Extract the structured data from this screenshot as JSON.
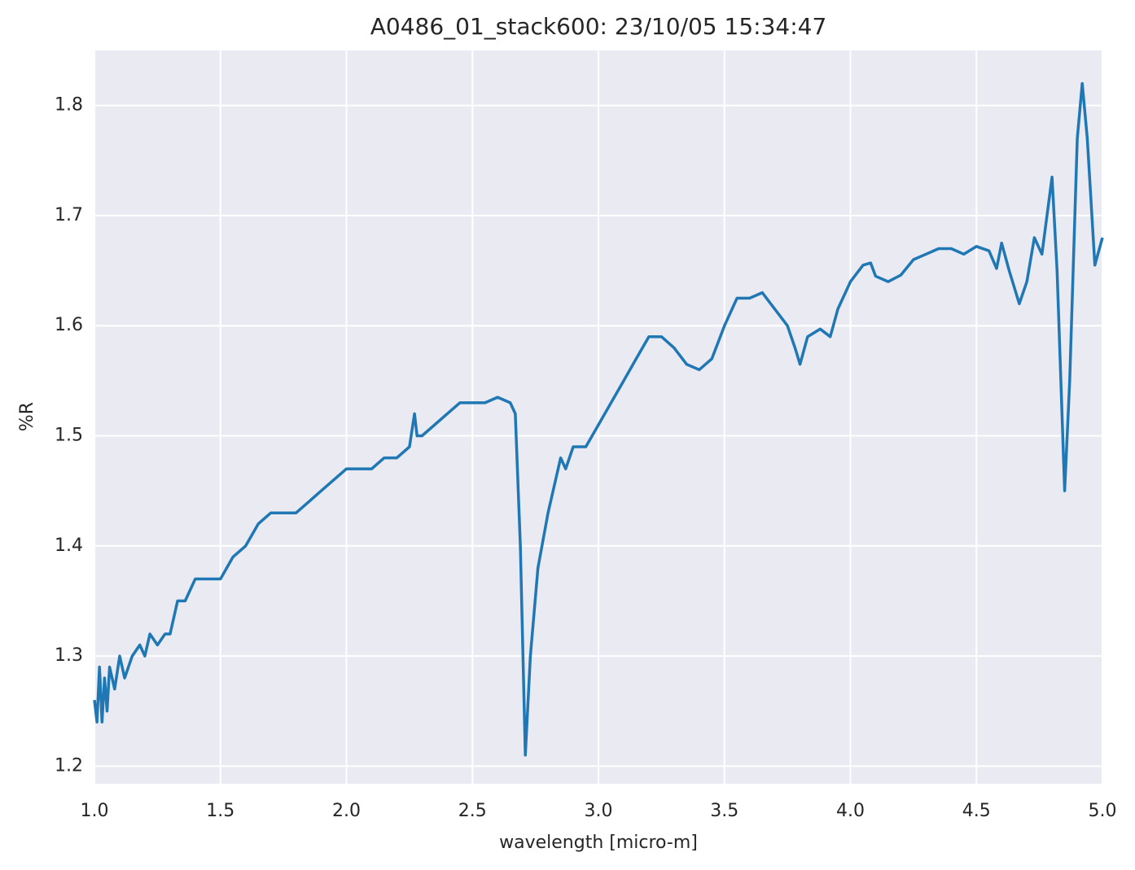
{
  "chart_data": {
    "type": "line",
    "title": "A0486_01_stack600:  23/10/05 15:34:47",
    "x_label": "wavelength [micro-m]",
    "y_label": "%R",
    "xlim": [
      1.0,
      5.0
    ],
    "ylim": [
      1.184,
      1.85
    ],
    "xticks": [
      {
        "value": 1.0,
        "label": "1.0"
      },
      1.5,
      {
        "value": 2.0,
        "label": "2.0"
      },
      2.5,
      {
        "value": 3.0,
        "label": "3.0"
      },
      3.5,
      {
        "value": 4.0,
        "label": "4.0"
      },
      4.5,
      {
        "value": 5.0,
        "label": "5.0"
      }
    ],
    "yticks": [
      1.2,
      1.3,
      1.4,
      1.5,
      1.6,
      1.7,
      1.8
    ],
    "grid": true,
    "background": "#eaeaf2",
    "x": [
      1.0,
      1.01,
      1.02,
      1.03,
      1.04,
      1.05,
      1.06,
      1.08,
      1.1,
      1.12,
      1.15,
      1.18,
      1.2,
      1.22,
      1.25,
      1.28,
      1.3,
      1.33,
      1.36,
      1.4,
      1.45,
      1.5,
      1.55,
      1.6,
      1.65,
      1.7,
      1.75,
      1.8,
      1.85,
      1.9,
      1.95,
      2.0,
      2.05,
      2.1,
      2.15,
      2.2,
      2.25,
      2.27,
      2.28,
      2.3,
      2.35,
      2.4,
      2.45,
      2.5,
      2.55,
      2.6,
      2.65,
      2.67,
      2.69,
      2.71,
      2.73,
      2.76,
      2.8,
      2.83,
      2.85,
      2.87,
      2.9,
      2.95,
      3.0,
      3.05,
      3.1,
      3.15,
      3.2,
      3.25,
      3.3,
      3.35,
      3.4,
      3.45,
      3.5,
      3.55,
      3.6,
      3.65,
      3.7,
      3.75,
      3.78,
      3.8,
      3.83,
      3.88,
      3.92,
      3.95,
      4.0,
      4.05,
      4.08,
      4.1,
      4.15,
      4.2,
      4.25,
      4.3,
      4.35,
      4.4,
      4.45,
      4.5,
      4.55,
      4.58,
      4.6,
      4.63,
      4.67,
      4.7,
      4.73,
      4.76,
      4.8,
      4.82,
      4.85,
      4.87,
      4.9,
      4.92,
      4.94,
      4.97,
      5.0
    ],
    "series": [
      {
        "color": "#1f77b4",
        "values": [
          1.26,
          1.24,
          1.29,
          1.24,
          1.28,
          1.25,
          1.29,
          1.27,
          1.3,
          1.28,
          1.3,
          1.31,
          1.3,
          1.32,
          1.31,
          1.32,
          1.32,
          1.35,
          1.35,
          1.37,
          1.37,
          1.37,
          1.39,
          1.4,
          1.42,
          1.43,
          1.43,
          1.43,
          1.44,
          1.45,
          1.46,
          1.47,
          1.47,
          1.47,
          1.48,
          1.48,
          1.49,
          1.52,
          1.5,
          1.5,
          1.51,
          1.52,
          1.53,
          1.53,
          1.53,
          1.535,
          1.53,
          1.52,
          1.4,
          1.21,
          1.3,
          1.38,
          1.43,
          1.46,
          1.48,
          1.47,
          1.49,
          1.49,
          1.51,
          1.53,
          1.55,
          1.57,
          1.59,
          1.59,
          1.58,
          1.565,
          1.56,
          1.57,
          1.6,
          1.625,
          1.625,
          1.63,
          1.615,
          1.6,
          1.58,
          1.565,
          1.59,
          1.597,
          1.59,
          1.615,
          1.64,
          1.655,
          1.657,
          1.645,
          1.64,
          1.646,
          1.66,
          1.665,
          1.67,
          1.67,
          1.665,
          1.672,
          1.668,
          1.652,
          1.675,
          1.65,
          1.62,
          1.64,
          1.68,
          1.665,
          1.735,
          1.65,
          1.45,
          1.55,
          1.77,
          1.82,
          1.77,
          1.655,
          1.68
        ]
      }
    ]
  }
}
